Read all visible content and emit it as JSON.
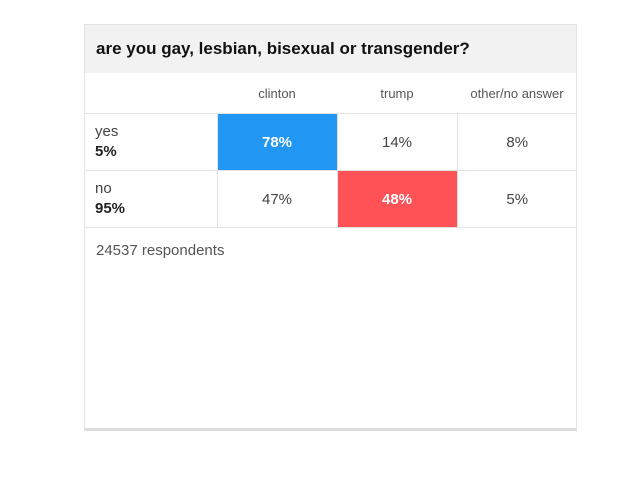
{
  "title": "are you gay, lesbian, bisexual or transgender?",
  "columns": [
    "clinton",
    "trump",
    "other/no answer"
  ],
  "rows": [
    {
      "label": "yes",
      "share": "5%",
      "values": [
        "78%",
        "14%",
        "8%"
      ],
      "lead_index": 0
    },
    {
      "label": "no",
      "share": "95%",
      "values": [
        "47%",
        "48%",
        "5%"
      ],
      "lead_index": 1
    }
  ],
  "respondents": "24537 respondents",
  "colors": {
    "clinton": "#2196f3",
    "trump": "#ff5256"
  },
  "chart_data": {
    "type": "table",
    "title": "are you gay, lesbian, bisexual or transgender?",
    "categories": [
      "yes",
      "no"
    ],
    "category_share": [
      5,
      95
    ],
    "series": [
      {
        "name": "clinton",
        "values": [
          78,
          47
        ]
      },
      {
        "name": "trump",
        "values": [
          14,
          48
        ]
      },
      {
        "name": "other/no answer",
        "values": [
          8,
          5
        ]
      }
    ],
    "unit": "%",
    "respondents": 24537
  }
}
